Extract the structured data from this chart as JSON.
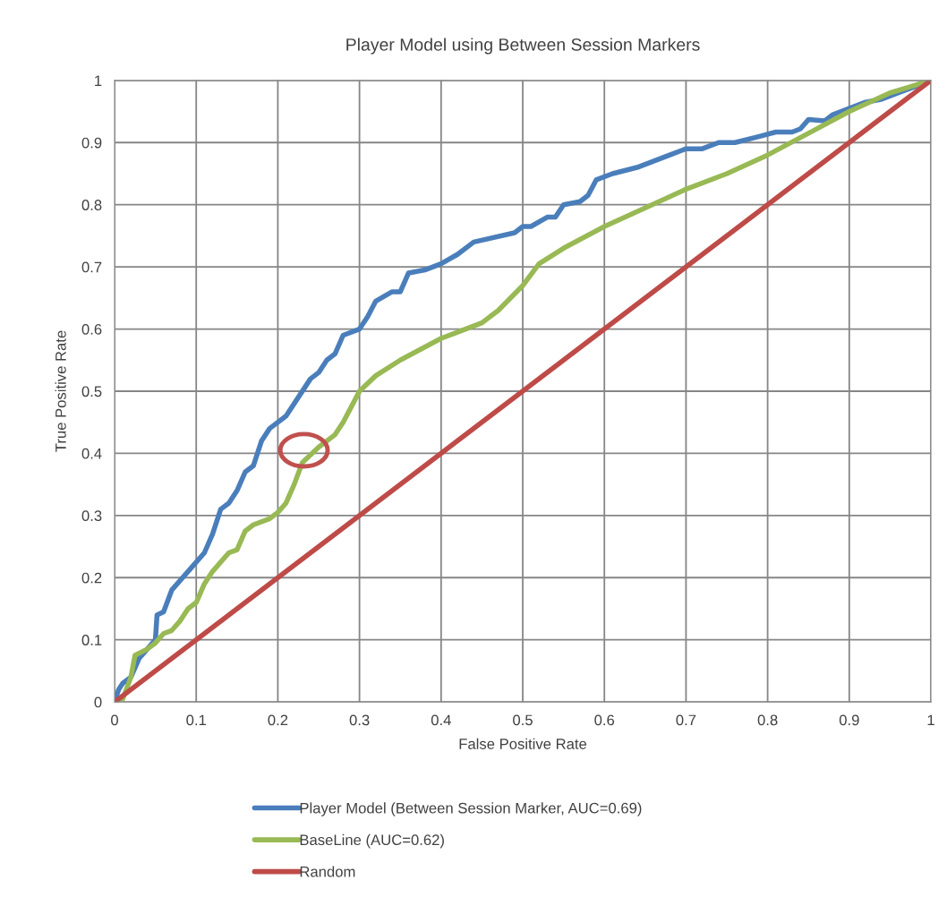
{
  "chart_data": {
    "type": "line",
    "title": "Player Model using Between Session Markers",
    "xlabel": "False Positive Rate",
    "ylabel": "True Positive Rate",
    "xlim": [
      0,
      1
    ],
    "ylim": [
      0,
      1
    ],
    "xticks": [
      0,
      0.1,
      0.2,
      0.3,
      0.4,
      0.5,
      0.6,
      0.7,
      0.8,
      0.9,
      1
    ],
    "yticks": [
      0,
      0.1,
      0.2,
      0.3,
      0.4,
      0.5,
      0.6,
      0.7,
      0.8,
      0.9,
      1
    ],
    "grid": true,
    "legend": "bottom",
    "marker": "none",
    "line_style": "solid",
    "series": [
      {
        "name": "Player Model (Between Session Marker, AUC=0.69)",
        "color": "#4a7ebb",
        "x": [
          0,
          0.005,
          0.01,
          0.02,
          0.03,
          0.04,
          0.05,
          0.052,
          0.06,
          0.07,
          0.09,
          0.11,
          0.12,
          0.13,
          0.14,
          0.15,
          0.16,
          0.17,
          0.18,
          0.19,
          0.21,
          0.22,
          0.24,
          0.25,
          0.26,
          0.27,
          0.28,
          0.3,
          0.31,
          0.32,
          0.34,
          0.35,
          0.36,
          0.38,
          0.4,
          0.42,
          0.44,
          0.49,
          0.5,
          0.51,
          0.53,
          0.54,
          0.55,
          0.57,
          0.58,
          0.59,
          0.61,
          0.64,
          0.66,
          0.68,
          0.7,
          0.72,
          0.74,
          0.76,
          0.79,
          0.81,
          0.83,
          0.84,
          0.85,
          0.87,
          0.88,
          0.9,
          0.92,
          0.94,
          0.96,
          1
        ],
        "values": [
          0,
          0.02,
          0.03,
          0.04,
          0.07,
          0.085,
          0.1,
          0.14,
          0.145,
          0.18,
          0.21,
          0.24,
          0.27,
          0.31,
          0.32,
          0.34,
          0.37,
          0.38,
          0.42,
          0.44,
          0.46,
          0.48,
          0.52,
          0.53,
          0.55,
          0.56,
          0.59,
          0.6,
          0.62,
          0.645,
          0.66,
          0.66,
          0.69,
          0.695,
          0.705,
          0.72,
          0.74,
          0.755,
          0.765,
          0.765,
          0.78,
          0.78,
          0.8,
          0.805,
          0.815,
          0.84,
          0.85,
          0.86,
          0.87,
          0.88,
          0.89,
          0.89,
          0.9,
          0.9,
          0.91,
          0.917,
          0.917,
          0.922,
          0.937,
          0.935,
          0.945,
          0.955,
          0.965,
          0.97,
          0.98,
          1
        ]
      },
      {
        "name": "BaseLine (AUC=0.62)",
        "color": "#98b954",
        "x": [
          0,
          0.01,
          0.02,
          0.025,
          0.04,
          0.05,
          0.06,
          0.07,
          0.08,
          0.09,
          0.1,
          0.11,
          0.12,
          0.13,
          0.14,
          0.15,
          0.16,
          0.17,
          0.19,
          0.2,
          0.21,
          0.22,
          0.23,
          0.25,
          0.27,
          0.28,
          0.29,
          0.3,
          0.32,
          0.35,
          0.4,
          0.45,
          0.47,
          0.5,
          0.52,
          0.55,
          0.6,
          0.65,
          0.7,
          0.75,
          0.8,
          0.85,
          0.9,
          0.95,
          1
        ],
        "values": [
          0,
          0.005,
          0.04,
          0.075,
          0.085,
          0.095,
          0.11,
          0.115,
          0.13,
          0.15,
          0.16,
          0.19,
          0.21,
          0.225,
          0.24,
          0.245,
          0.275,
          0.285,
          0.295,
          0.305,
          0.32,
          0.35,
          0.385,
          0.41,
          0.43,
          0.45,
          0.475,
          0.5,
          0.525,
          0.55,
          0.585,
          0.61,
          0.63,
          0.67,
          0.705,
          0.73,
          0.765,
          0.795,
          0.825,
          0.85,
          0.88,
          0.915,
          0.95,
          0.98,
          1
        ]
      },
      {
        "name": "Random",
        "color": "#be4b48",
        "x": [
          0,
          1
        ],
        "values": [
          0,
          1
        ]
      }
    ]
  }
}
